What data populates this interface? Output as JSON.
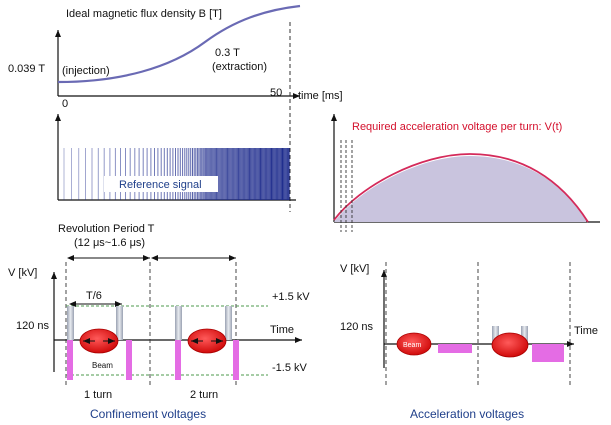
{
  "top_plot": {
    "title": "Ideal magnetic flux density B [T]",
    "low_value": "0.039 T",
    "injection": "(injection)",
    "high_value": "0.3 T",
    "extraction": "(extraction)",
    "x0": "0",
    "x50": "50",
    "time_label": "time [ms]"
  },
  "reference": {
    "label": "Reference signal"
  },
  "voltage_plot": {
    "title": "Required acceleration voltage per turn: V(t)"
  },
  "period": {
    "title": "Revolution Period T",
    "range": "(12 μs~1.6 μs)"
  },
  "confinement": {
    "v_axis": "V [kV]",
    "t6": "T/6",
    "pos_kv": "+1.5 kV",
    "neg_kv": "-1.5 kV",
    "ns": "120 ns",
    "time": "Time",
    "beam": "Beam",
    "turn1": "1 turn",
    "turn2": "2 turn",
    "caption": "Confinement voltages"
  },
  "acceleration": {
    "v_axis": "V [kV]",
    "ns": "120 ns",
    "time": "Time",
    "beam": "Beam",
    "caption": "Acceleration voltages"
  },
  "colors": {
    "curve": "#6a6ab4",
    "bars": "#1c2a8c",
    "red_curve": "#d42a5a",
    "fill": "#c9c4de",
    "beam": "#e20f15",
    "pulse": "#e46ce4",
    "gate": "#c6cbd6",
    "grid": "#4e9a4e",
    "caption": "#1f3f8a"
  }
}
